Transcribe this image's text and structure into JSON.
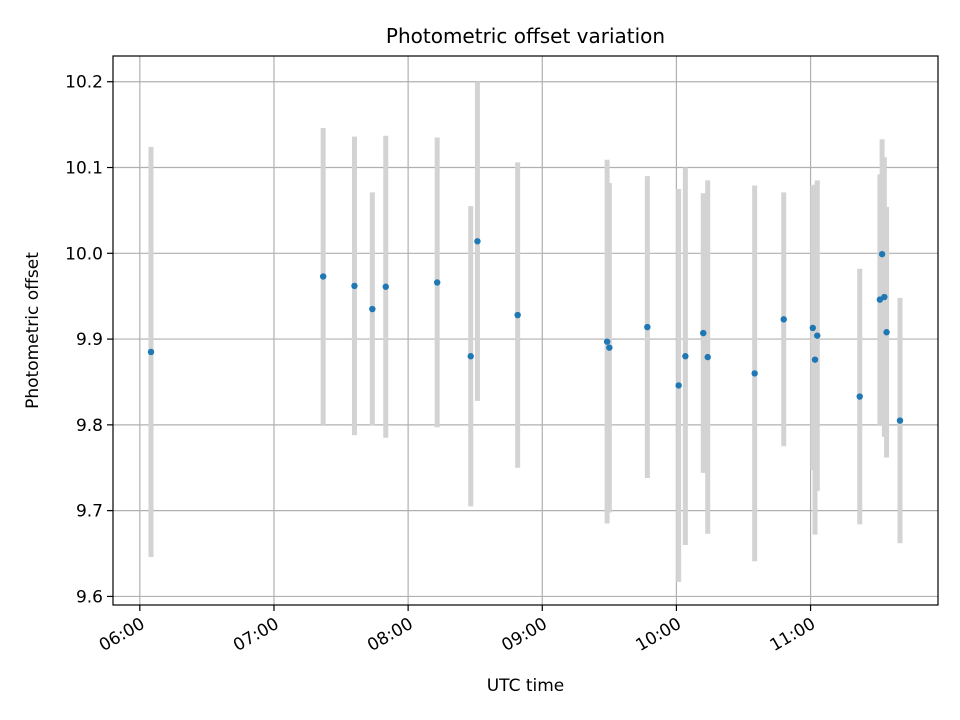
{
  "chart_data": {
    "type": "scatter",
    "title": "Photometric offset variation",
    "xlabel": "UTC time",
    "ylabel": "Photometric offset",
    "xlim": [
      "05:48",
      "11:57"
    ],
    "ylim": [
      9.59,
      10.23
    ],
    "x_ticks": [
      "06:00",
      "07:00",
      "08:00",
      "09:00",
      "10:00",
      "11:00"
    ],
    "y_ticks": [
      "9.6",
      "9.7",
      "9.8",
      "9.9",
      "10.0",
      "10.1",
      "10.2"
    ],
    "grid": true,
    "colors": {
      "point": "#1f77b4",
      "errorbar": "#d3d3d3",
      "grid": "#b0b0b0"
    },
    "points": [
      {
        "x": "06:05",
        "y": 9.885,
        "err": 0.239
      },
      {
        "x": "07:22",
        "y": 9.973,
        "err": 0.173
      },
      {
        "x": "07:36",
        "y": 9.962,
        "err": 0.174
      },
      {
        "x": "07:44",
        "y": 9.935,
        "err": 0.136
      },
      {
        "x": "07:50",
        "y": 9.961,
        "err": 0.176
      },
      {
        "x": "08:13",
        "y": 9.966,
        "err": 0.169
      },
      {
        "x": "08:28",
        "y": 9.88,
        "err": 0.175
      },
      {
        "x": "08:31",
        "y": 10.014,
        "err": 0.186
      },
      {
        "x": "08:49",
        "y": 9.928,
        "err": 0.178
      },
      {
        "x": "09:29",
        "y": 9.897,
        "err": 0.212
      },
      {
        "x": "09:30",
        "y": 9.89,
        "err": 0.192
      },
      {
        "x": "09:47",
        "y": 9.914,
        "err": 0.176
      },
      {
        "x": "10:01",
        "y": 9.846,
        "err": 0.229
      },
      {
        "x": "10:04",
        "y": 9.88,
        "err": 0.22
      },
      {
        "x": "10:12",
        "y": 9.907,
        "err": 0.163
      },
      {
        "x": "10:14",
        "y": 9.879,
        "err": 0.206
      },
      {
        "x": "10:35",
        "y": 9.86,
        "err": 0.219
      },
      {
        "x": "10:48",
        "y": 9.923,
        "err": 0.148
      },
      {
        "x": "11:01",
        "y": 9.913,
        "err": 0.166
      },
      {
        "x": "11:02",
        "y": 9.876,
        "err": 0.204
      },
      {
        "x": "11:03",
        "y": 9.904,
        "err": 0.181
      },
      {
        "x": "11:22",
        "y": 9.833,
        "err": 0.149
      },
      {
        "x": "11:31",
        "y": 9.946,
        "err": 0.146
      },
      {
        "x": "11:32",
        "y": 9.999,
        "err": 0.134
      },
      {
        "x": "11:33",
        "y": 9.949,
        "err": 0.163
      },
      {
        "x": "11:34",
        "y": 9.908,
        "err": 0.146
      },
      {
        "x": "11:40",
        "y": 9.805,
        "err": 0.143
      }
    ]
  }
}
